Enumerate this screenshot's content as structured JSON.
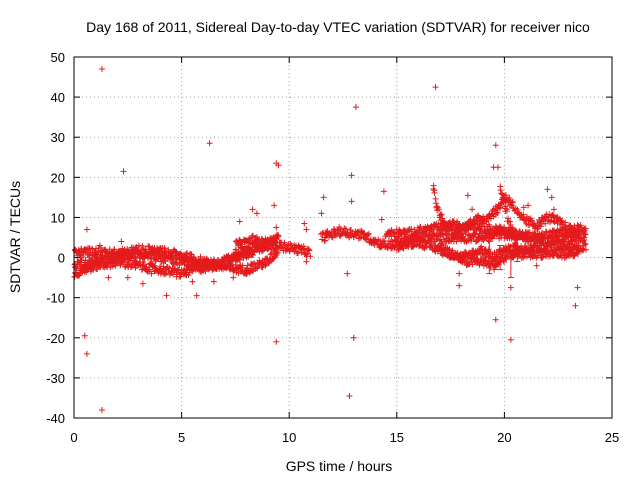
{
  "chart_data": {
    "type": "scatter",
    "title": "Day 168 of 2011, Sidereal Day-to-day VTEC variation (SDTVAR) for receiver nico",
    "xlabel": "GPS time / hours",
    "ylabel": "SDTVAR / TECUs",
    "xlim": [
      0,
      25
    ],
    "ylim": [
      -40,
      50
    ],
    "xticks": [
      "0",
      "5",
      "10",
      "15",
      "20",
      "25"
    ],
    "yticks": [
      "-40",
      "-30",
      "-20",
      "-10",
      "0",
      "10",
      "20",
      "30",
      "40",
      "50"
    ],
    "grid": true,
    "marker": "+",
    "series_color": "#e41a1c",
    "dense_tracks": [
      {
        "name": "track-a",
        "points": [
          [
            0,
            -2
          ],
          [
            1,
            -1
          ],
          [
            2,
            0.5
          ],
          [
            3,
            1
          ],
          [
            4,
            0
          ],
          [
            5,
            -1
          ],
          [
            6,
            -2
          ],
          [
            7,
            -1
          ],
          [
            8,
            2
          ],
          [
            9,
            4
          ],
          [
            9.5,
            5
          ]
        ]
      },
      {
        "name": "track-b",
        "points": [
          [
            0,
            1
          ],
          [
            1,
            1.5
          ],
          [
            2,
            1
          ],
          [
            3,
            2
          ],
          [
            4,
            1.5
          ],
          [
            5,
            0.5
          ],
          [
            6,
            -1
          ],
          [
            7,
            -2.5
          ],
          [
            8,
            -3
          ],
          [
            9,
            -1
          ],
          [
            9.5,
            2
          ]
        ]
      },
      {
        "name": "track-c",
        "points": [
          [
            0,
            -4
          ],
          [
            1,
            -2
          ],
          [
            2,
            -1
          ],
          [
            3,
            -2
          ],
          [
            4,
            -3
          ],
          [
            5,
            -4
          ],
          [
            5.5,
            -3
          ],
          [
            6.5,
            -2
          ],
          [
            7.5,
            0
          ],
          [
            8.5,
            2
          ],
          [
            9.5,
            4.5
          ]
        ]
      },
      {
        "name": "track-d",
        "points": [
          [
            7.5,
            3
          ],
          [
            8.3,
            4.5
          ],
          [
            9,
            3
          ],
          [
            9.5,
            3
          ],
          [
            10.5,
            2
          ],
          [
            11,
            1
          ]
        ]
      },
      {
        "name": "track-e",
        "points": [
          [
            11.5,
            5
          ],
          [
            12.3,
            6.5
          ],
          [
            13,
            6
          ],
          [
            13.5,
            5.5
          ],
          [
            14,
            4
          ],
          [
            14.5,
            3
          ],
          [
            15.5,
            4
          ],
          [
            16.5,
            5
          ],
          [
            17,
            5
          ],
          [
            18,
            5
          ],
          [
            19,
            5
          ],
          [
            20,
            6
          ],
          [
            21,
            5
          ],
          [
            22,
            4
          ],
          [
            23,
            5
          ],
          [
            23.8,
            5
          ]
        ]
      },
      {
        "name": "track-f",
        "points": [
          [
            14.5,
            6
          ],
          [
            15.5,
            6
          ],
          [
            16.5,
            7
          ],
          [
            17.5,
            8
          ],
          [
            18.5,
            8
          ],
          [
            19.5,
            7
          ],
          [
            20.5,
            6
          ],
          [
            21.5,
            5
          ],
          [
            22.5,
            6
          ],
          [
            23.5,
            6
          ]
        ]
      },
      {
        "name": "track-g",
        "points": [
          [
            15,
            3
          ],
          [
            16,
            4
          ],
          [
            17,
            2
          ],
          [
            18,
            0
          ],
          [
            19,
            2
          ],
          [
            19.5,
            0
          ],
          [
            20,
            2
          ],
          [
            21,
            2
          ],
          [
            22,
            3
          ],
          [
            23,
            3
          ],
          [
            23.8,
            2.5
          ]
        ]
      },
      {
        "name": "track-h",
        "points": [
          [
            16.7,
            18
          ],
          [
            16.9,
            12
          ],
          [
            17.2,
            8
          ],
          [
            17.8,
            6
          ],
          [
            18.5,
            9
          ],
          [
            19.2,
            10
          ],
          [
            19.7,
            12
          ],
          [
            20,
            15
          ],
          [
            20.3,
            14
          ],
          [
            20.7,
            10
          ],
          [
            21.5,
            8
          ],
          [
            22,
            10
          ],
          [
            22.5,
            9
          ],
          [
            23,
            7
          ],
          [
            23.8,
            7
          ]
        ]
      },
      {
        "name": "track-i",
        "points": [
          [
            17,
            3
          ],
          [
            17.5,
            1
          ],
          [
            18.2,
            -1
          ],
          [
            19,
            -1
          ],
          [
            19.5,
            -2
          ],
          [
            20,
            0
          ],
          [
            20.5,
            1
          ],
          [
            21.5,
            1
          ],
          [
            22.5,
            1
          ],
          [
            23.5,
            1
          ]
        ]
      },
      {
        "name": "track-j",
        "points": [
          [
            19.8,
            17
          ],
          [
            20,
            13
          ],
          [
            20.2,
            9
          ],
          [
            20.4,
            5
          ],
          [
            20.6,
            3
          ]
        ]
      }
    ],
    "scattered_points": [
      [
        1.3,
        47
      ],
      [
        6.3,
        28.5
      ],
      [
        2.3,
        21.5
      ],
      [
        9.4,
        23.5
      ],
      [
        9.5,
        23
      ],
      [
        13.1,
        37.5
      ],
      [
        12.9,
        20.5
      ],
      [
        16.8,
        42.5
      ],
      [
        19.6,
        28
      ],
      [
        19.5,
        22.5
      ],
      [
        19.7,
        22.5
      ],
      [
        18.3,
        15.5
      ],
      [
        14.4,
        16.5
      ],
      [
        11.6,
        15
      ],
      [
        12.9,
        14
      ],
      [
        11.5,
        11
      ],
      [
        0.6,
        7
      ],
      [
        1.3,
        -38
      ],
      [
        0.5,
        -19.5
      ],
      [
        0.6,
        -24
      ],
      [
        5.7,
        -9.5
      ],
      [
        4.3,
        -9.5
      ],
      [
        9.4,
        -21
      ],
      [
        12.8,
        -34.5
      ],
      [
        13,
        -20
      ],
      [
        12.7,
        -4
      ],
      [
        19.6,
        -15.5
      ],
      [
        20.3,
        -20.5
      ],
      [
        23.3,
        -12
      ],
      [
        23.4,
        -7.5
      ],
      [
        17.9,
        -7
      ],
      [
        17.9,
        -4
      ],
      [
        21.5,
        -2
      ],
      [
        20.3,
        -7.5
      ],
      [
        3.2,
        -6.5
      ],
      [
        2.5,
        -5
      ],
      [
        10.8,
        -1
      ],
      [
        1.2,
        3
      ],
      [
        2.2,
        4
      ],
      [
        3.6,
        -4
      ],
      [
        5.5,
        -6
      ],
      [
        6.5,
        -6
      ],
      [
        7.7,
        9
      ],
      [
        8.3,
        12
      ],
      [
        8.5,
        11
      ],
      [
        9.3,
        13
      ],
      [
        9.4,
        7.5
      ],
      [
        10.7,
        8.5
      ],
      [
        10.8,
        7
      ],
      [
        22,
        17
      ],
      [
        22.2,
        15
      ],
      [
        22.3,
        12
      ],
      [
        20.9,
        12.5
      ],
      [
        21.1,
        13
      ],
      [
        18.5,
        12
      ],
      [
        17.3,
        4
      ],
      [
        15.7,
        5
      ],
      [
        14.3,
        9.5
      ],
      [
        4.7,
        1
      ],
      [
        0.3,
        0.5
      ],
      [
        0.8,
        -3
      ],
      [
        1.6,
        -5
      ],
      [
        7.4,
        -5
      ],
      [
        8.9,
        -2
      ]
    ],
    "error_bars": [
      {
        "x": 19.3,
        "y": 0,
        "low": -4,
        "high": 4
      },
      {
        "x": 19.8,
        "y": 0,
        "low": -3,
        "high": 3
      },
      {
        "x": 20.3,
        "y": 0,
        "low": -5,
        "high": 3
      },
      {
        "x": 20.6,
        "y": 2,
        "low": -1,
        "high": 5
      }
    ]
  }
}
